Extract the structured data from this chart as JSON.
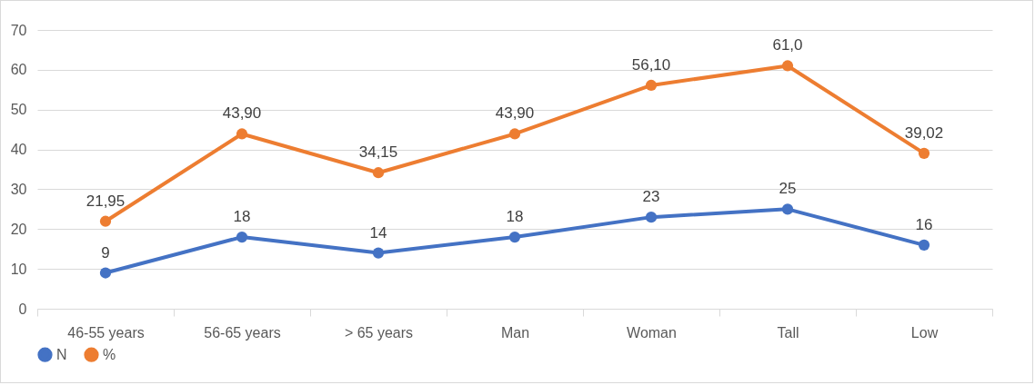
{
  "chart_data": {
    "type": "line",
    "categories": [
      "46-55 years",
      "56-65 years",
      "> 65 years",
      "Man",
      "Woman",
      "Tall",
      "Low"
    ],
    "series": [
      {
        "name": "N",
        "color": "#4472c4",
        "values": [
          9,
          18,
          14,
          18,
          23,
          25,
          16
        ],
        "value_labels": [
          "9",
          "18",
          "14",
          "18",
          "23",
          "25",
          "16"
        ]
      },
      {
        "name": "%",
        "color": "#ed7d31",
        "values": [
          21.95,
          43.9,
          34.15,
          43.9,
          56.1,
          61.0,
          39.02
        ],
        "value_labels": [
          "21,95",
          "43,90",
          "34,15",
          "43,90",
          "56,10",
          "61,0",
          "39,02"
        ]
      }
    ],
    "ylim": [
      0,
      70
    ],
    "yticks": [
      0,
      10,
      20,
      30,
      40,
      50,
      60,
      70
    ],
    "grid": "y",
    "legend": "bottom",
    "marker": "circle",
    "line_style": "solid"
  }
}
